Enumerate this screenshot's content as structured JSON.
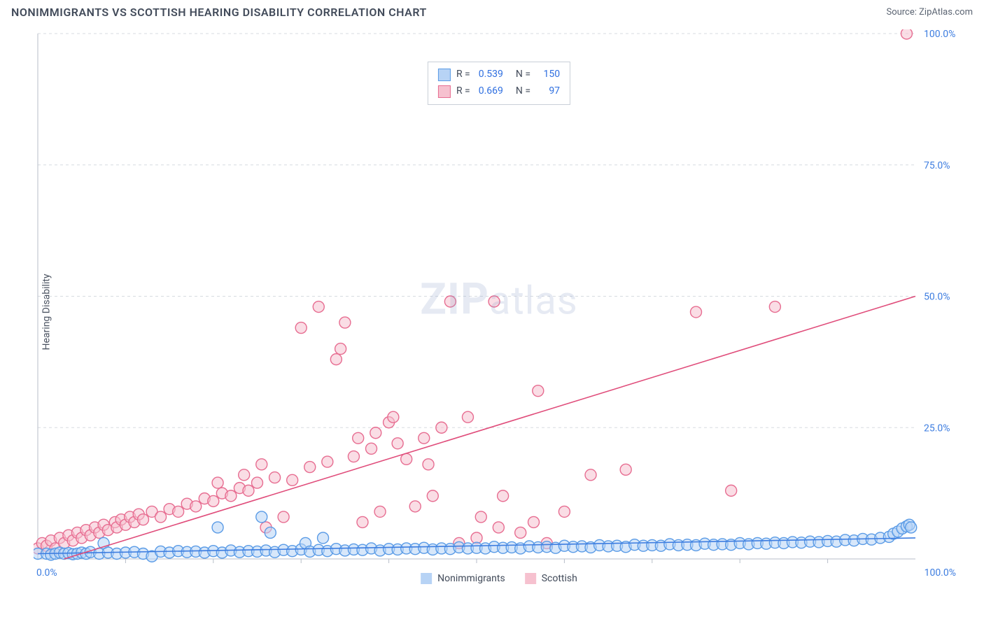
{
  "header": {
    "title": "NONIMMIGRANTS VS SCOTTISH HEARING DISABILITY CORRELATION CHART",
    "source_label": "Source: ",
    "source_name": "ZipAtlas.com"
  },
  "chart": {
    "type": "scatter",
    "ylabel": "Hearing Disability",
    "background_color": "#ffffff",
    "grid_color": "#d7dbe0",
    "axis_color": "#b7bec8",
    "tick_color": "#3d7de0",
    "xlim": [
      0,
      100
    ],
    "ylim": [
      0,
      100
    ],
    "x_ticks": [
      0,
      100
    ],
    "x_tick_labels": [
      "0.0%",
      "100.0%"
    ],
    "y_ticks": [
      25,
      50,
      75,
      100
    ],
    "y_tick_labels": [
      "25.0%",
      "50.0%",
      "75.0%",
      "100.0%"
    ],
    "y_grid": [
      0,
      25,
      50,
      75,
      100
    ],
    "x_minor_ticks": [
      10,
      20,
      30,
      40,
      50,
      60,
      70,
      80,
      90
    ],
    "marker_radius": 8,
    "marker_stroke_width": 1.4,
    "line_width": 1.6,
    "watermark": {
      "prefix": "ZIP",
      "suffix": "atlas"
    }
  },
  "legend_top": {
    "rows": [
      {
        "R_label": "R =",
        "R": "0.539",
        "N_label": "N =",
        "N": "150"
      },
      {
        "R_label": "R =",
        "R": "0.669",
        "N_label": "N =",
        "N": "97"
      }
    ]
  },
  "legend_bottom": {
    "items": [
      {
        "label": "Nonimmigrants"
      },
      {
        "label": "Scottish"
      }
    ]
  },
  "series": [
    {
      "name": "Nonimmigrants",
      "fill": "#b7d3f5",
      "stroke": "#5a9be6",
      "fill_opacity": 0.55,
      "trend": {
        "x1": 0,
        "y1": 1.0,
        "x2": 100,
        "y2": 4.0,
        "color": "#3d7de0"
      },
      "points": [
        [
          0,
          1
        ],
        [
          1,
          1
        ],
        [
          1.5,
          0.8
        ],
        [
          2,
          1
        ],
        [
          2.5,
          1.2
        ],
        [
          3,
          1
        ],
        [
          3.5,
          1.1
        ],
        [
          4,
          0.9
        ],
        [
          4.5,
          1
        ],
        [
          5,
          1.2
        ],
        [
          5.5,
          1
        ],
        [
          6,
          1.3
        ],
        [
          7,
          1
        ],
        [
          7.5,
          3
        ],
        [
          8,
          1.2
        ],
        [
          9,
          1
        ],
        [
          10,
          1.2
        ],
        [
          11,
          1.3
        ],
        [
          12,
          1
        ],
        [
          13,
          0.5
        ],
        [
          14,
          1.4
        ],
        [
          15,
          1.2
        ],
        [
          16,
          1.5
        ],
        [
          17,
          1.3
        ],
        [
          18,
          1.4
        ],
        [
          19,
          1.2
        ],
        [
          20,
          1.5
        ],
        [
          20.5,
          6
        ],
        [
          21,
          1.2
        ],
        [
          22,
          1.6
        ],
        [
          23,
          1.3
        ],
        [
          24,
          1.5
        ],
        [
          25,
          1.4
        ],
        [
          25.5,
          8
        ],
        [
          26,
          1.6
        ],
        [
          26.5,
          5
        ],
        [
          27,
          1.3
        ],
        [
          28,
          1.7
        ],
        [
          29,
          1.5
        ],
        [
          30,
          1.8
        ],
        [
          30.5,
          3
        ],
        [
          31,
          1.4
        ],
        [
          32,
          1.7
        ],
        [
          32.5,
          4
        ],
        [
          33,
          1.5
        ],
        [
          34,
          1.9
        ],
        [
          35,
          1.6
        ],
        [
          36,
          1.8
        ],
        [
          37,
          1.7
        ],
        [
          38,
          2
        ],
        [
          39,
          1.6
        ],
        [
          40,
          1.9
        ],
        [
          41,
          1.8
        ],
        [
          42,
          2
        ],
        [
          43,
          1.9
        ],
        [
          44,
          2.1
        ],
        [
          45,
          1.8
        ],
        [
          46,
          2
        ],
        [
          47,
          1.9
        ],
        [
          48,
          2.2
        ],
        [
          49,
          2
        ],
        [
          50,
          2.1
        ],
        [
          51,
          2
        ],
        [
          52,
          2.3
        ],
        [
          53,
          2.1
        ],
        [
          54,
          2.2
        ],
        [
          55,
          2
        ],
        [
          56,
          2.4
        ],
        [
          57,
          2.2
        ],
        [
          58,
          2.3
        ],
        [
          59,
          2.1
        ],
        [
          60,
          2.5
        ],
        [
          61,
          2.3
        ],
        [
          62,
          2.4
        ],
        [
          63,
          2.2
        ],
        [
          64,
          2.6
        ],
        [
          65,
          2.4
        ],
        [
          66,
          2.5
        ],
        [
          67,
          2.3
        ],
        [
          68,
          2.7
        ],
        [
          69,
          2.5
        ],
        [
          70,
          2.6
        ],
        [
          71,
          2.5
        ],
        [
          72,
          2.8
        ],
        [
          73,
          2.6
        ],
        [
          74,
          2.7
        ],
        [
          75,
          2.6
        ],
        [
          76,
          2.9
        ],
        [
          77,
          2.7
        ],
        [
          78,
          2.8
        ],
        [
          79,
          2.7
        ],
        [
          80,
          3
        ],
        [
          81,
          2.8
        ],
        [
          82,
          3
        ],
        [
          83,
          2.9
        ],
        [
          84,
          3.1
        ],
        [
          85,
          3
        ],
        [
          86,
          3.2
        ],
        [
          87,
          3.1
        ],
        [
          88,
          3.3
        ],
        [
          89,
          3.2
        ],
        [
          90,
          3.4
        ],
        [
          91,
          3.3
        ],
        [
          92,
          3.6
        ],
        [
          93,
          3.5
        ],
        [
          94,
          3.8
        ],
        [
          95,
          3.7
        ],
        [
          96,
          4
        ],
        [
          97,
          4.2
        ],
        [
          97.5,
          4.8
        ],
        [
          98,
          5.2
        ],
        [
          98.5,
          5.8
        ],
        [
          99,
          6.2
        ],
        [
          99.3,
          6.5
        ],
        [
          99.5,
          6.0
        ]
      ]
    },
    {
      "name": "Scottish",
      "fill": "#f6c1cf",
      "stroke": "#e76d91",
      "fill_opacity": 0.55,
      "trend": {
        "x1": 3,
        "y1": 0,
        "x2": 100,
        "y2": 50,
        "color": "#e04d7b"
      },
      "points": [
        [
          0,
          2
        ],
        [
          0.5,
          3
        ],
        [
          1,
          2.5
        ],
        [
          1.5,
          3.5
        ],
        [
          2,
          2
        ],
        [
          2.5,
          4
        ],
        [
          3,
          3
        ],
        [
          3.5,
          4.5
        ],
        [
          4,
          3.5
        ],
        [
          4.5,
          5
        ],
        [
          5,
          4
        ],
        [
          5.5,
          5.5
        ],
        [
          6,
          4.5
        ],
        [
          6.5,
          6
        ],
        [
          7,
          5
        ],
        [
          7.5,
          6.5
        ],
        [
          8,
          5.5
        ],
        [
          8.8,
          7
        ],
        [
          9,
          6
        ],
        [
          9.5,
          7.5
        ],
        [
          10,
          6.5
        ],
        [
          10.5,
          8
        ],
        [
          11,
          7
        ],
        [
          11.5,
          8.5
        ],
        [
          12,
          7.5
        ],
        [
          13,
          9
        ],
        [
          14,
          8
        ],
        [
          15,
          9.5
        ],
        [
          16,
          9
        ],
        [
          17,
          10.5
        ],
        [
          18,
          10
        ],
        [
          19,
          11.5
        ],
        [
          20,
          11
        ],
        [
          20.5,
          14.5
        ],
        [
          21,
          12.5
        ],
        [
          22,
          12
        ],
        [
          23,
          13.5
        ],
        [
          23.5,
          16
        ],
        [
          24,
          13
        ],
        [
          25,
          14.5
        ],
        [
          25.5,
          18
        ],
        [
          26,
          6
        ],
        [
          27,
          15.5
        ],
        [
          28,
          8
        ],
        [
          29,
          15
        ],
        [
          30,
          44
        ],
        [
          31,
          17.5
        ],
        [
          32,
          48
        ],
        [
          33,
          18.5
        ],
        [
          34,
          38
        ],
        [
          34.5,
          40
        ],
        [
          35,
          45
        ],
        [
          36,
          19.5
        ],
        [
          36.5,
          23
        ],
        [
          37,
          7
        ],
        [
          38,
          21
        ],
        [
          38.5,
          24
        ],
        [
          39,
          9
        ],
        [
          40,
          26
        ],
        [
          40.5,
          27
        ],
        [
          41,
          22
        ],
        [
          42,
          19
        ],
        [
          43,
          10
        ],
        [
          44,
          23
        ],
        [
          44.5,
          18
        ],
        [
          45,
          12
        ],
        [
          46,
          25
        ],
        [
          47,
          49
        ],
        [
          48,
          3
        ],
        [
          49,
          27
        ],
        [
          50,
          4
        ],
        [
          50.5,
          8
        ],
        [
          52,
          49
        ],
        [
          52.5,
          6
        ],
        [
          53,
          12
        ],
        [
          55,
          5
        ],
        [
          56.5,
          7
        ],
        [
          57,
          32
        ],
        [
          58,
          3
        ],
        [
          60,
          9
        ],
        [
          63,
          16
        ],
        [
          67,
          17
        ],
        [
          75,
          47
        ],
        [
          79,
          13
        ],
        [
          84,
          48
        ],
        [
          99,
          100
        ]
      ]
    }
  ]
}
